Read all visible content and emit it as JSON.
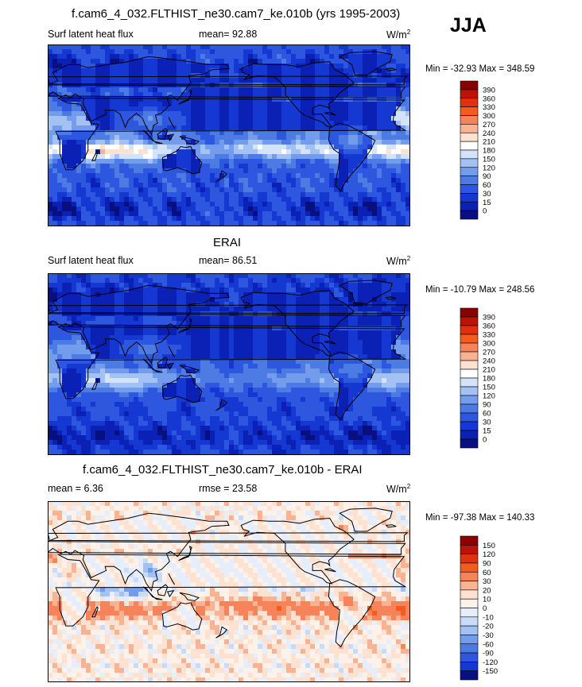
{
  "season": "JJA",
  "chart_data": [
    {
      "type": "heatmap",
      "title": "f.cam6_4_032.FLTHIST_ne30.cam7_ke.010b (yrs 1995-2003)",
      "left_label": "Surf latent heat flux",
      "center_label": "mean=  92.88",
      "mean": 92.88,
      "units": "W/m",
      "units_sup": "2",
      "minmax": "Min = -32.93 Max = 348.59",
      "min": -32.93,
      "max": 348.59,
      "levels": [
        "390",
        "360",
        "330",
        "300",
        "270",
        "240",
        "210",
        "180",
        "150",
        "120",
        "90",
        "60",
        "30",
        "15",
        "0"
      ],
      "colors": [
        "#8a0000",
        "#bd1208",
        "#e0300e",
        "#f55a1e",
        "#f7835a",
        "#f9b392",
        "#fde2d2",
        "#ffffff",
        "#d2e3fa",
        "#a4c1f4",
        "#739cec",
        "#4d7be4",
        "#2c57de",
        "#1638d2",
        "#0b20b5",
        "#07107e"
      ]
    },
    {
      "type": "heatmap",
      "title": "ERAI",
      "left_label": "Surf latent heat flux",
      "center_label": "mean=  86.51",
      "mean": 86.51,
      "units": "W/m",
      "units_sup": "2",
      "minmax": "Min = -10.79 Max = 248.56",
      "min": -10.79,
      "max": 248.56,
      "levels": [
        "390",
        "360",
        "330",
        "300",
        "270",
        "240",
        "210",
        "180",
        "150",
        "120",
        "90",
        "60",
        "30",
        "15",
        "0"
      ],
      "colors": [
        "#8a0000",
        "#bd1208",
        "#e0300e",
        "#f55a1e",
        "#f7835a",
        "#f9b392",
        "#fde2d2",
        "#ffffff",
        "#d2e3fa",
        "#a4c1f4",
        "#739cec",
        "#4d7be4",
        "#2c57de",
        "#1638d2",
        "#0b20b5",
        "#07107e"
      ]
    },
    {
      "type": "heatmap",
      "title": "f.cam6_4_032.FLTHIST_ne30.cam7_ke.010b - ERAI",
      "left_label": "mean =   6.36",
      "center_label": "rmse =  23.58",
      "mean": 6.36,
      "rmse": 23.58,
      "units": "W/m",
      "units_sup": "2",
      "minmax": "Min = -97.38 Max = 140.33",
      "min": -97.38,
      "max": 140.33,
      "levels": [
        "150",
        "120",
        "90",
        "60",
        "30",
        "20",
        "10",
        "0",
        "-10",
        "-20",
        "-30",
        "-60",
        "-90",
        "-120",
        "-150"
      ],
      "colors": [
        "#8a0000",
        "#bd1208",
        "#e0300e",
        "#f55a1e",
        "#f7835a",
        "#f9b392",
        "#fde2d2",
        "#fdf2ea",
        "#e6eefb",
        "#c9dbf8",
        "#a4c1f4",
        "#739cec",
        "#4d7be4",
        "#2c57de",
        "#1638d2",
        "#07107e"
      ]
    }
  ]
}
